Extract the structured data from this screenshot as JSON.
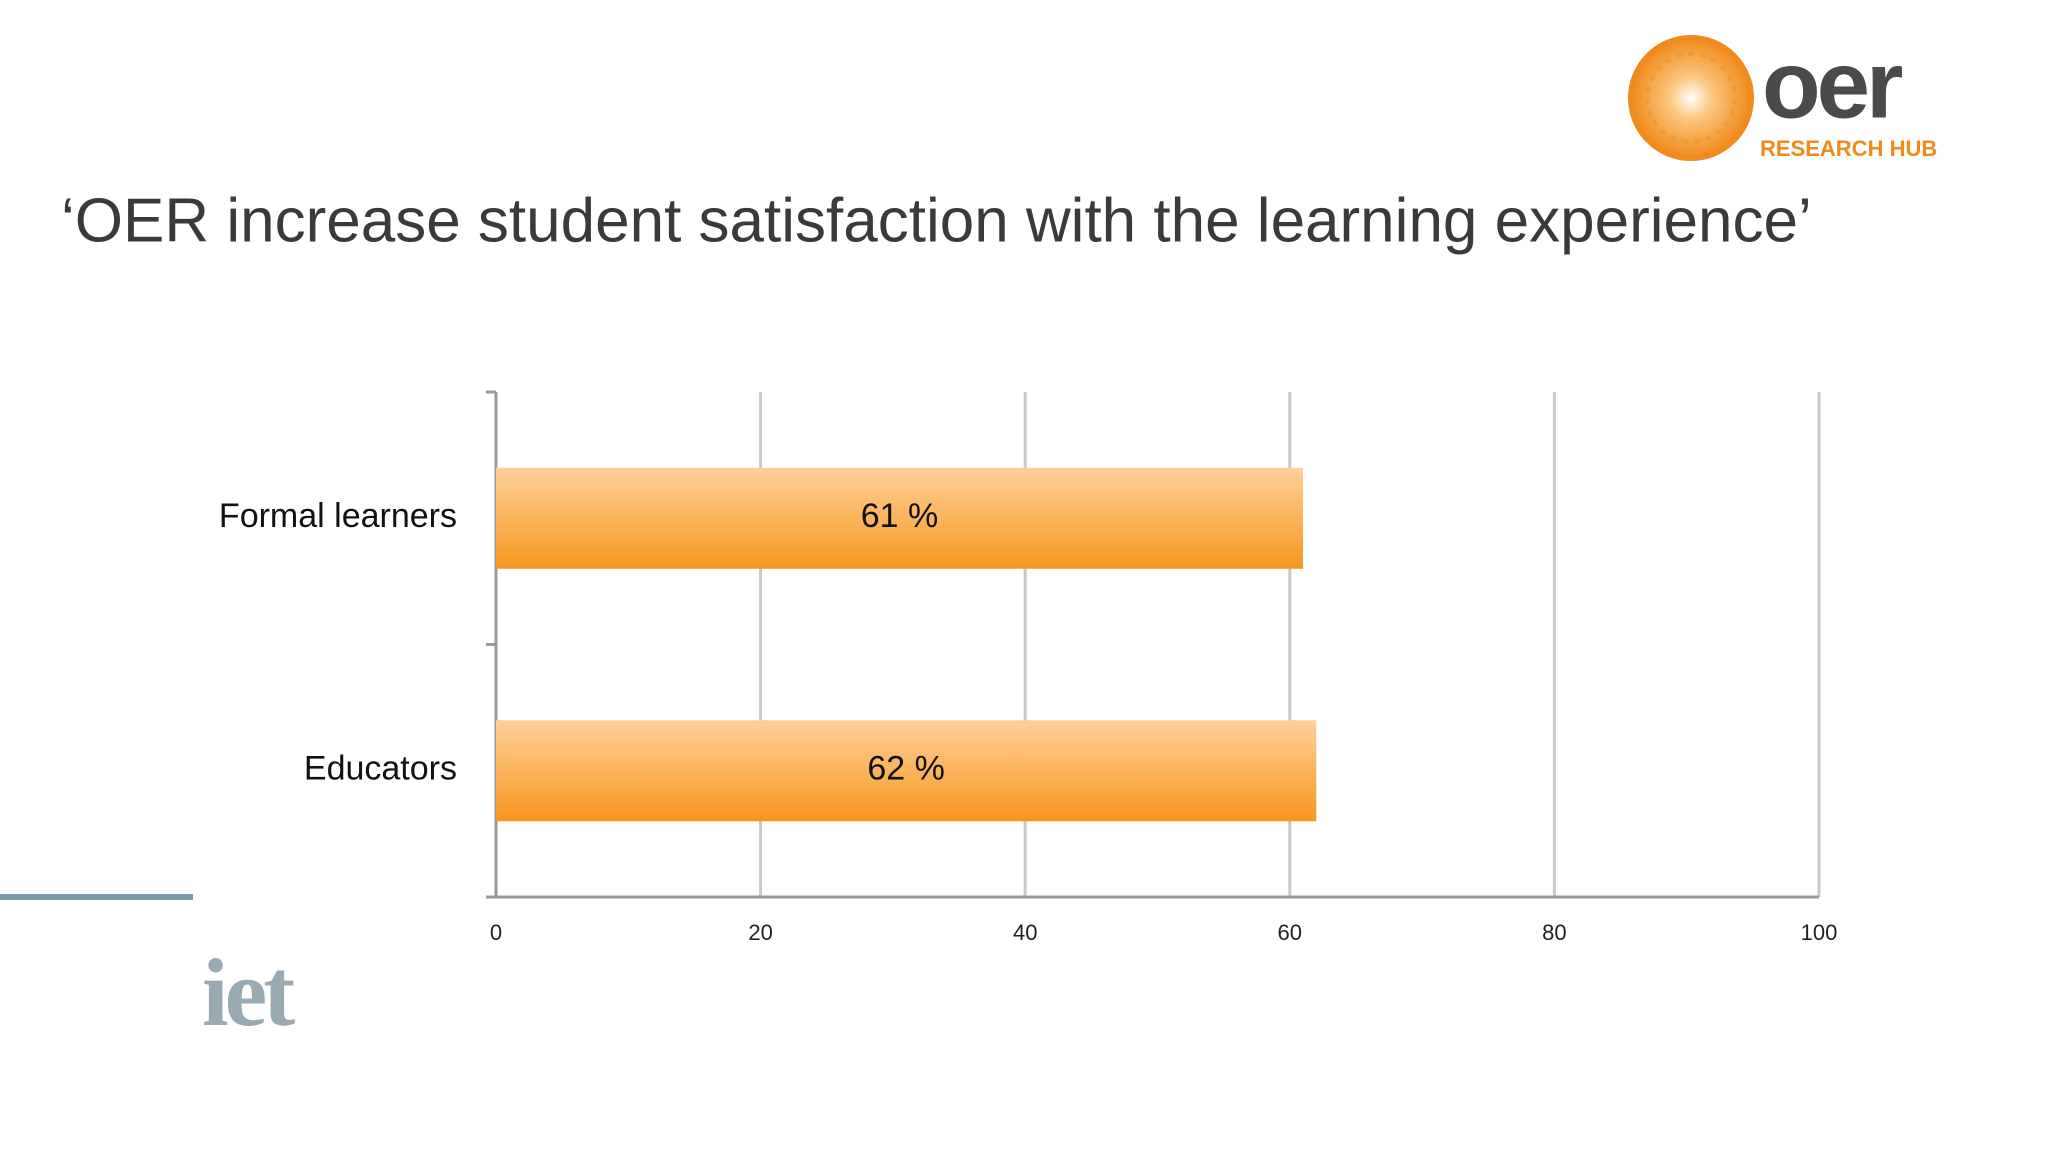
{
  "chart_data": {
    "type": "bar",
    "orientation": "horizontal",
    "title": "‘OER increase student satisfaction with the learning experience’",
    "categories": [
      "Formal learners",
      "Educators"
    ],
    "values": [
      61,
      62
    ],
    "value_labels": [
      "61 %",
      "62 %"
    ],
    "color": "#f7961f",
    "xlim": [
      0,
      100
    ],
    "xticks": [
      0,
      20,
      40,
      60,
      80,
      100
    ],
    "grid": true
  },
  "branding": {
    "logo_word": "oer",
    "logo_sub": "RESEARCH HUB",
    "footer_logo": "iet"
  }
}
